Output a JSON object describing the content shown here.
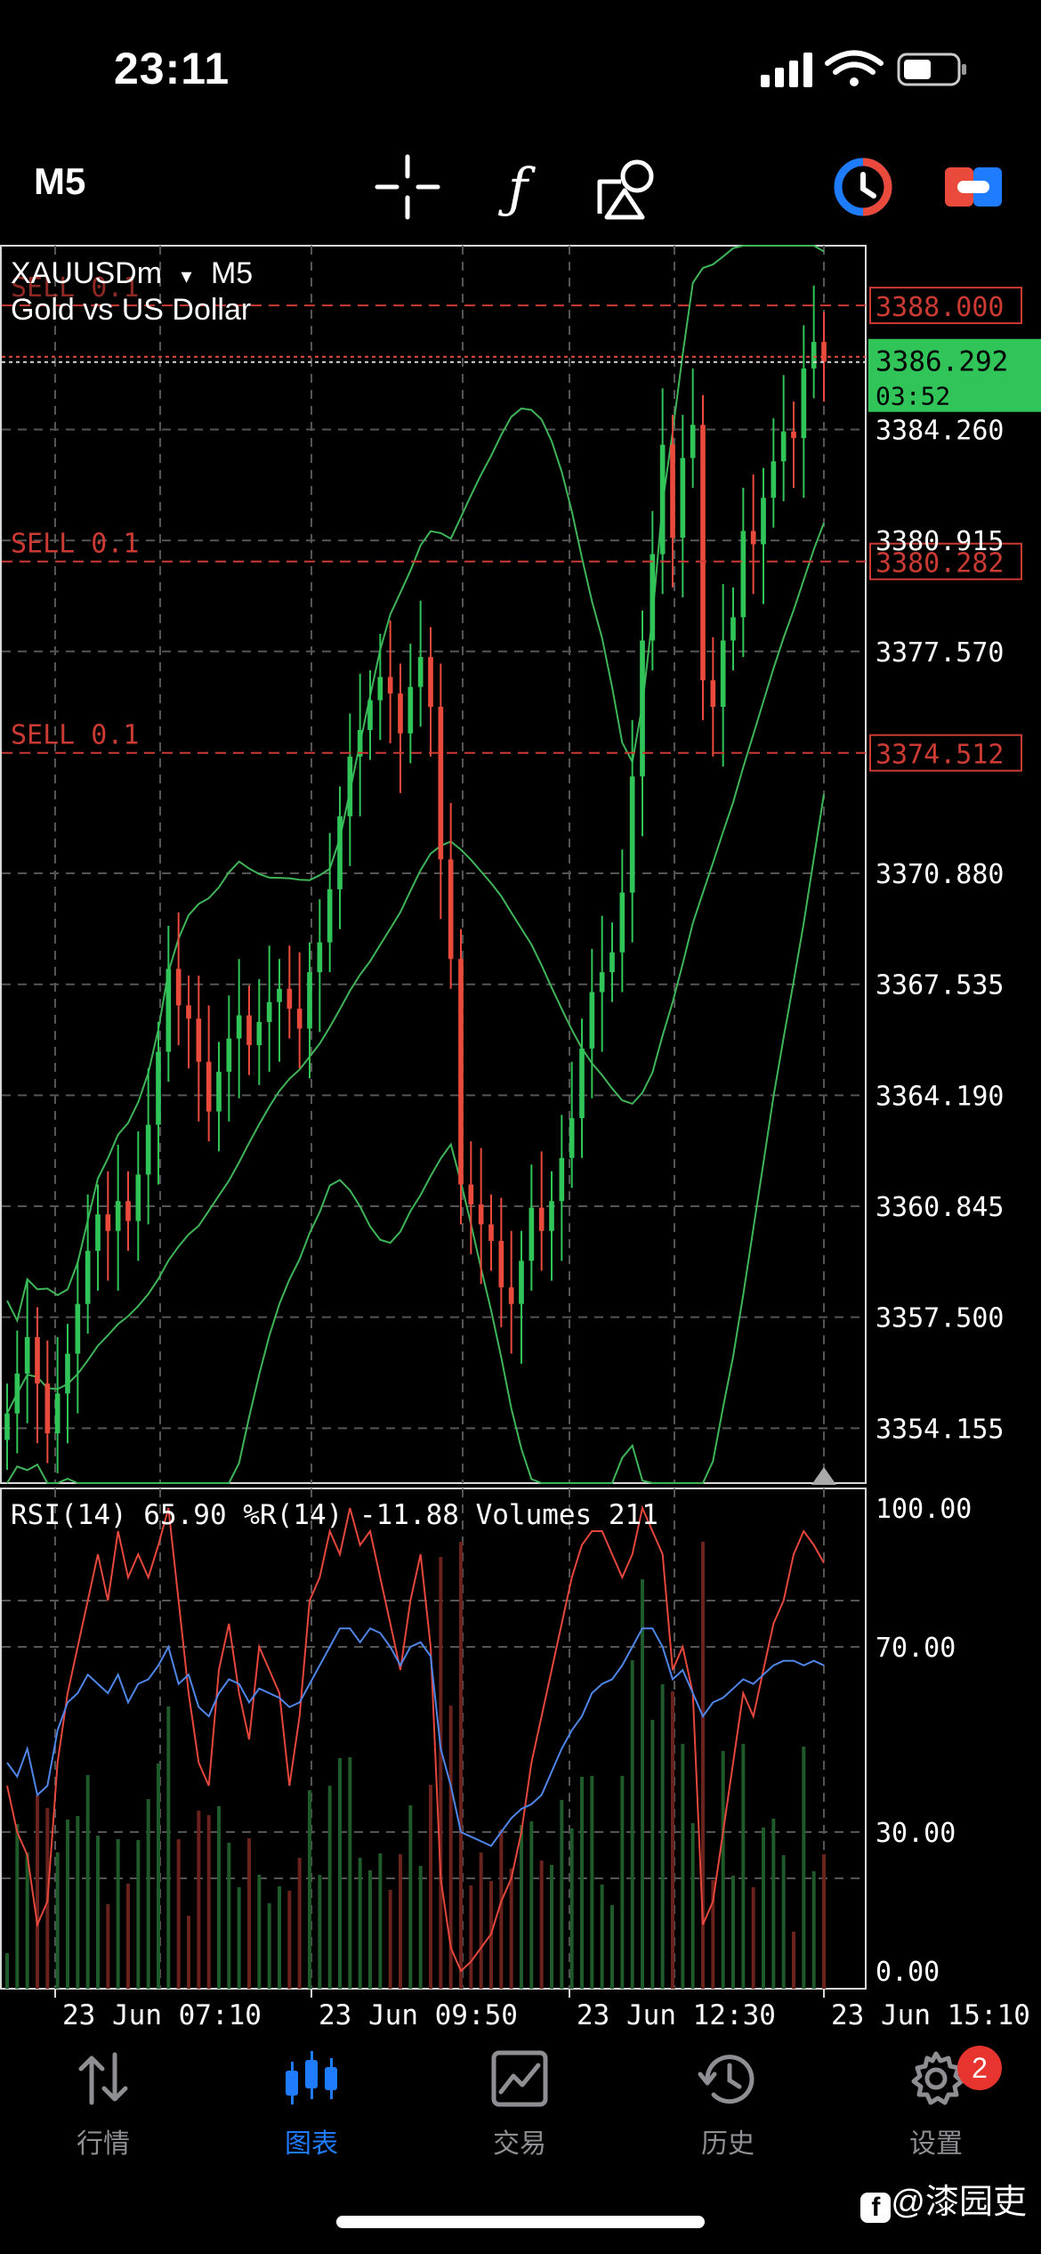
{
  "status_bar": {
    "time": "23:11"
  },
  "toolbar": {
    "timeframe": "M5",
    "icons": [
      "crosshair-icon",
      "indicator-f-icon",
      "objects-icon",
      "one-click-icon",
      "switch-icon"
    ]
  },
  "chart_header": {
    "symbol": "XAUUSDm",
    "dropdown_arrow": "▾",
    "timeframe": "M5",
    "description": "Gold vs US Dollar"
  },
  "orders": [
    {
      "label": "SELL 0.1",
      "price": "3388.000"
    },
    {
      "label": "SELL 0.1",
      "price": "3380.282"
    },
    {
      "label": "SELL 0.1",
      "price": "3374.512"
    }
  ],
  "current_price": {
    "bid": "3386.292",
    "countdown": "03:52"
  },
  "price_axis": [
    "3384.260",
    "3380.915",
    "3377.570",
    "3370.880",
    "3367.535",
    "3364.190",
    "3360.845",
    "3357.500",
    "3354.155"
  ],
  "indicator_header": {
    "text": "RSI(14) 65.90 %R(14) -11.88 Volumes 211"
  },
  "indicator_axis": [
    "100.00",
    "70.00",
    "30.00",
    "0.00"
  ],
  "time_axis": [
    "23 Jun 07:10",
    "23 Jun 09:50",
    "23 Jun 12:30",
    "23 Jun 15:10"
  ],
  "colors": {
    "bull": "#31c458",
    "bear": "#ea4a3c",
    "rsi": "#4f86e8",
    "wpr": "#e5473d",
    "band": "#3fb55a",
    "accent": "#1f7cff",
    "order_line": "#cc3b33"
  },
  "chart_data": {
    "type": "candlestick",
    "symbol": "XAUUSDm",
    "timeframe": "M5",
    "price_range": [
      3352.5,
      3389.8
    ],
    "closes": [
      3354.6,
      3355.8,
      3356.9,
      3355.5,
      3354.0,
      3355.2,
      3356.4,
      3357.9,
      3359.5,
      3360.6,
      3360.1,
      3361.0,
      3360.4,
      3361.8,
      3363.3,
      3365.5,
      3368.0,
      3366.9,
      3366.5,
      3365.2,
      3363.7,
      3364.9,
      3365.9,
      3366.6,
      3365.7,
      3366.4,
      3367.0,
      3367.4,
      3366.8,
      3366.2,
      3367.9,
      3368.8,
      3370.4,
      3372.6,
      3374.4,
      3375.2,
      3376.1,
      3376.8,
      3376.3,
      3375.1,
      3376.5,
      3377.4,
      3375.9,
      3371.3,
      3368.3,
      3361.5,
      3360.9,
      3360.3,
      3359.8,
      3358.4,
      3357.9,
      3359.2,
      3360.8,
      3360.1,
      3361.0,
      3362.3,
      3363.5,
      3365.6,
      3367.3,
      3367.9,
      3368.5,
      3370.3,
      3373.8,
      3377.9,
      3380.5,
      3383.8,
      3381.0,
      3383.4,
      3384.4,
      3376.7,
      3375.9,
      3377.9,
      3378.6,
      3381.2,
      3380.8,
      3382.2,
      3383.3,
      3384.2,
      3384.0,
      3386.1,
      3386.9,
      3386.3
    ],
    "rsi": [
      45,
      42,
      48,
      38,
      40,
      52,
      58,
      60,
      64,
      62,
      60,
      64,
      58,
      62,
      63,
      66,
      70,
      62,
      64,
      57,
      55,
      60,
      63,
      62,
      58,
      61,
      60,
      59,
      57,
      58,
      62,
      66,
      70,
      74,
      74,
      71,
      74,
      73,
      70,
      66,
      70,
      71,
      68,
      48,
      40,
      30,
      29,
      28,
      27,
      30,
      33,
      35,
      36,
      38,
      43,
      48,
      52,
      55,
      60,
      62,
      63,
      66,
      70,
      74,
      74,
      70,
      63,
      65,
      60,
      55,
      58,
      59,
      61,
      63,
      62,
      64,
      66,
      67,
      67,
      66,
      67,
      66
    ],
    "williams_r": [
      -60,
      -70,
      -75,
      -90,
      -85,
      -55,
      -40,
      -30,
      -20,
      -10,
      -20,
      -5,
      -15,
      -10,
      -15,
      -8,
      0,
      -20,
      -40,
      -55,
      -60,
      -35,
      -25,
      -40,
      -50,
      -30,
      -35,
      -40,
      -60,
      -45,
      -20,
      -15,
      -5,
      -10,
      0,
      -8,
      -5,
      -15,
      -25,
      -35,
      -20,
      -10,
      -30,
      -80,
      -95,
      -100,
      -98,
      -95,
      -92,
      -85,
      -80,
      -70,
      -55,
      -45,
      -35,
      -25,
      -15,
      -8,
      -5,
      -5,
      -10,
      -15,
      -10,
      0,
      -5,
      -10,
      -35,
      -30,
      -40,
      -90,
      -85,
      -70,
      -55,
      -40,
      -45,
      -35,
      -25,
      -20,
      -10,
      -5,
      -8,
      -11.88
    ],
    "volumes_last": 211
  },
  "tabs": [
    {
      "label": "行情",
      "icon": "quotes-arrows-icon",
      "active": false
    },
    {
      "label": "图表",
      "icon": "chart-candles-icon",
      "active": true
    },
    {
      "label": "交易",
      "icon": "trade-chart-icon",
      "active": false
    },
    {
      "label": "历史",
      "icon": "history-clock-icon",
      "active": false
    },
    {
      "label": "设置",
      "icon": "settings-gear-icon",
      "active": false,
      "badge": "2"
    }
  ],
  "watermark": "@漆园吏"
}
